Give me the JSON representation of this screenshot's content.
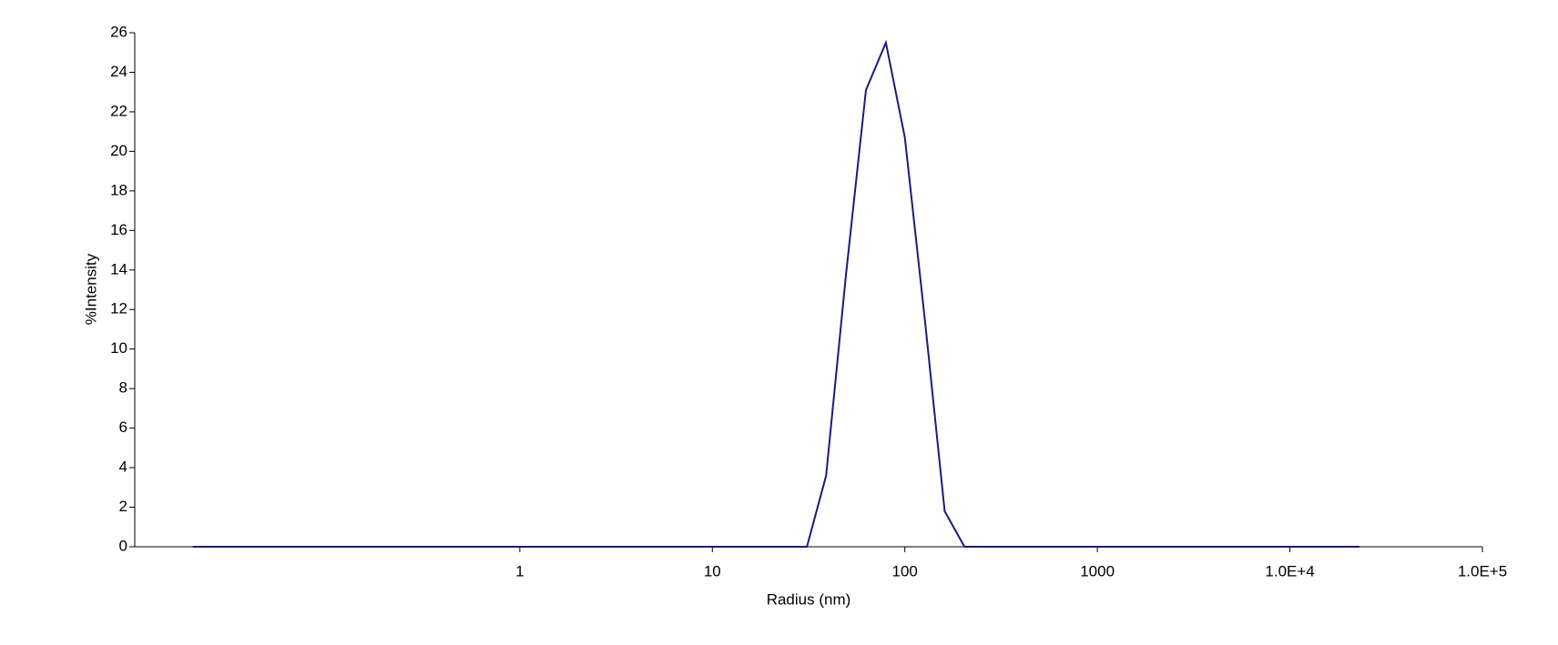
{
  "chart_data": {
    "type": "line",
    "x_label": "Radius (nm)",
    "y_label": "%Intensity",
    "x_log": true,
    "xlim": [
      0.01,
      100000
    ],
    "xticks": [
      1,
      10,
      100,
      1000,
      {
        "value": 10000,
        "label": "1.0E+4"
      },
      {
        "value": 100000,
        "label": "1.0E+5"
      }
    ],
    "ylim": [
      0,
      26
    ],
    "yticks": [
      0,
      2,
      4,
      6,
      8,
      10,
      12,
      14,
      16,
      18,
      20,
      22,
      24,
      26
    ],
    "series": [
      {
        "name": "Intensity",
        "color": "#1c1c78",
        "x": [
          0.02,
          31,
          39,
          49.5,
          62.8,
          79.7,
          100,
          127,
          161,
          204,
          23000
        ],
        "values": [
          0,
          0,
          3.6,
          13.8,
          23.1,
          25.5,
          20.7,
          11.5,
          1.8,
          0,
          0
        ]
      }
    ]
  }
}
